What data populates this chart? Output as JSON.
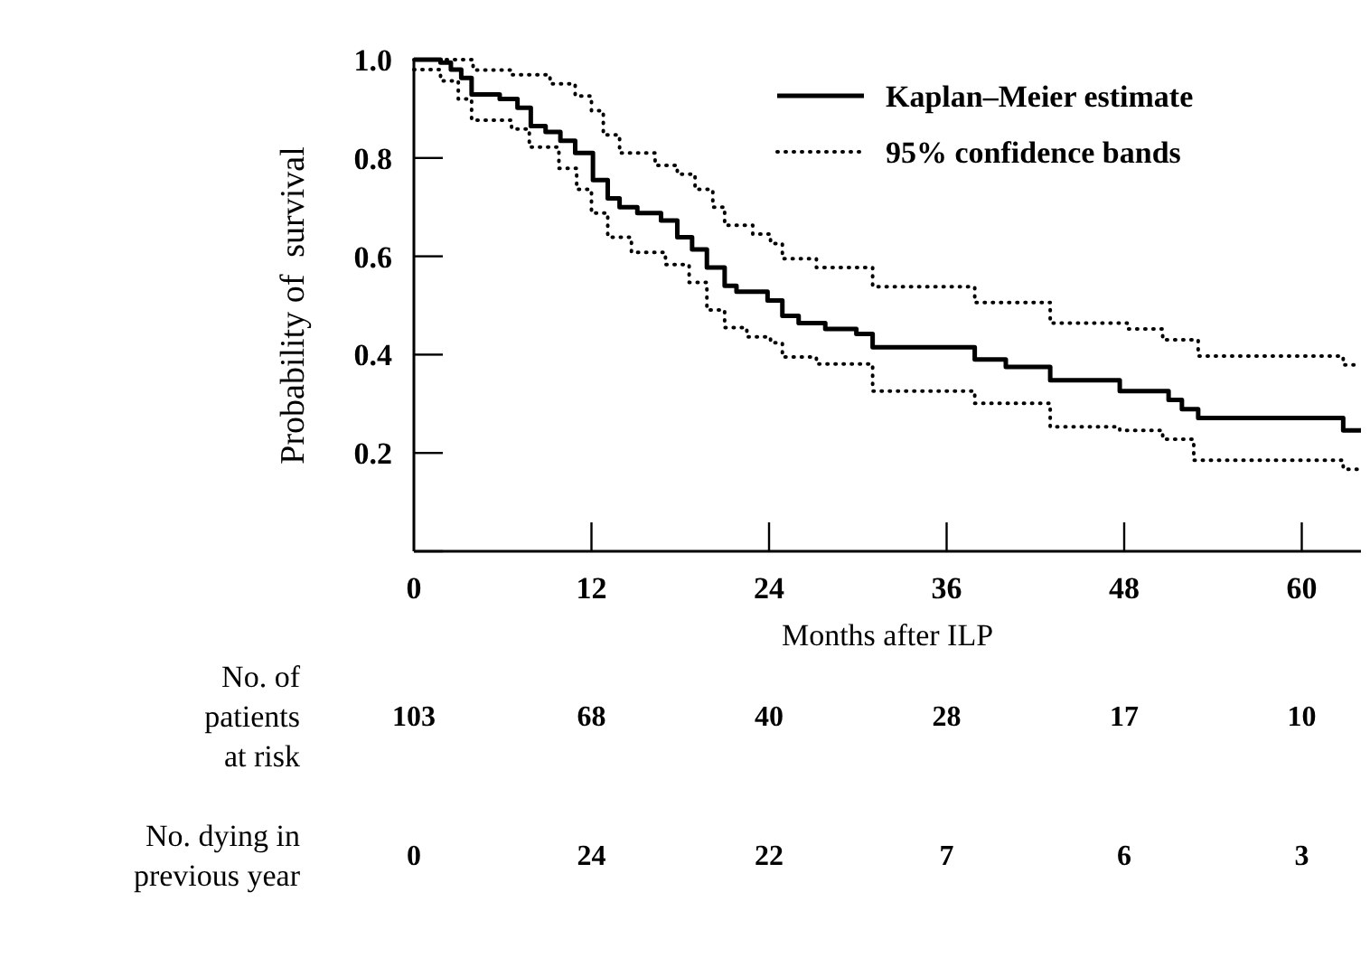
{
  "chart_data": {
    "type": "step",
    "xlabel": "Months after ILP",
    "ylabel": "Probability of  survival",
    "xlim": [
      0,
      64
    ],
    "ylim": [
      0,
      1
    ],
    "xticks": [
      0,
      12,
      24,
      36,
      48,
      60
    ],
    "yticks": [
      {
        "value": 0,
        "label": null
      },
      0.2,
      0.4,
      0.6,
      0.8,
      {
        "value": 1,
        "label": "1.0"
      }
    ],
    "legend": "top right",
    "grid": false,
    "series": [
      {
        "name": "Kaplan–Meier estimate",
        "color": "#000000",
        "line_style": "solid",
        "x": [
          0,
          1.8,
          2.5,
          3.2,
          3.9,
          5.8,
          7,
          7.9,
          8.9,
          9.9,
          10.9,
          12.1,
          13.1,
          13.9,
          15.1,
          16.7,
          17.8,
          18.8,
          19.8,
          21,
          21.8,
          23.9,
          24.9,
          26,
          27.8,
          29.9,
          31,
          37.9,
          40,
          43,
          47.7,
          51,
          51.9,
          53,
          62.8,
          64
        ],
        "values": [
          1,
          0.994,
          0.98,
          0.963,
          0.929,
          0.92,
          0.902,
          0.865,
          0.853,
          0.835,
          0.81,
          0.755,
          0.718,
          0.7,
          0.688,
          0.673,
          0.639,
          0.614,
          0.577,
          0.54,
          0.528,
          0.51,
          0.479,
          0.464,
          0.452,
          0.442,
          0.415,
          0.39,
          0.375,
          0.348,
          0.326,
          0.308,
          0.289,
          0.271,
          0.246,
          0.246
        ]
      },
      {
        "name": "95% confidence bands",
        "color": "#000000",
        "line_style": "dotted",
        "x": [
          0,
          4,
          6.6,
          9.2,
          10.9,
          12,
          12.8,
          13.9,
          16.3,
          17.8,
          19,
          20.2,
          21,
          22.9,
          24.1,
          24.9,
          27.2,
          31,
          37.9,
          43,
          48.2,
          50.6,
          53,
          62.8,
          64
        ],
        "values": [
          1,
          0.979,
          0.969,
          0.951,
          0.926,
          0.896,
          0.847,
          0.81,
          0.785,
          0.767,
          0.736,
          0.7,
          0.663,
          0.645,
          0.626,
          0.595,
          0.577,
          0.538,
          0.506,
          0.464,
          0.452,
          0.43,
          0.397,
          0.379,
          0.379
        ]
      },
      {
        "color": "#000000",
        "line_style": "dotted",
        "x": [
          0,
          1.8,
          3,
          3.9,
          6.6,
          7.8,
          9.8,
          11,
          12,
          13.1,
          14.7,
          17,
          18.6,
          19.8,
          21,
          22.5,
          24.1,
          24.9,
          27.2,
          31,
          37.9,
          43,
          47.7,
          50.6,
          52.7,
          62.8,
          64
        ],
        "values": [
          0.98,
          0.957,
          0.92,
          0.877,
          0.859,
          0.822,
          0.779,
          0.736,
          0.688,
          0.639,
          0.608,
          0.583,
          0.547,
          0.491,
          0.455,
          0.436,
          0.424,
          0.395,
          0.381,
          0.326,
          0.301,
          0.253,
          0.246,
          0.228,
          0.185,
          0.167,
          0.167
        ]
      }
    ],
    "annotations": [
      "No. of\npatients\nat risk",
      "103",
      "68",
      "40",
      "28",
      "17",
      "10",
      "No. dying in\nprevious year",
      "0",
      "24",
      "22",
      "7",
      "6",
      "3"
    ]
  }
}
